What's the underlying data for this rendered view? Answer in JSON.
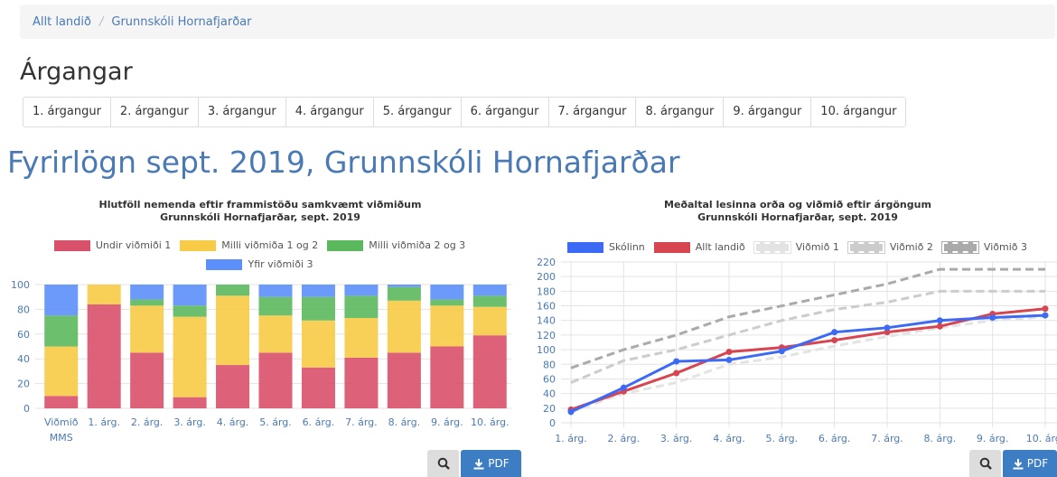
{
  "breadcrumb": [
    "Allt landið",
    "Grunnskóli Hornafjarðar"
  ],
  "heading": "Árgangar",
  "tabs": [
    "1. árgangur",
    "2. árgangur",
    "3. árgangur",
    "4. árgangur",
    "5. árgangur",
    "6. árgangur",
    "7. árgangur",
    "8. árgangur",
    "9. árgangur",
    "10. árgangur"
  ],
  "page_title": "Fyrirlögn sept. 2019, Grunnskóli Hornafjarðar",
  "chart_data": [
    {
      "type": "bar",
      "stacked": true,
      "grid": true,
      "title": [
        "Hlutföll nemenda eftir frammistöðu samkvæmt viðmiðum",
        "Grunnskóli Hornafjarðar, sept. 2019"
      ],
      "categories": [
        "Viðmið MMS",
        "1. árg.",
        "2. árg.",
        "3. árg.",
        "4. árg.",
        "5. árg.",
        "6. árg.",
        "7. árg.",
        "8. árg.",
        "9. árg.",
        "10. árg."
      ],
      "series": [
        {
          "name": "Undir viðmiði 1",
          "color": "#d9506a",
          "values": [
            10,
            84,
            45,
            9,
            35,
            45,
            33,
            41,
            45,
            50,
            59
          ]
        },
        {
          "name": "Milli viðmiða 1 og 2",
          "color": "#f7cb45",
          "values": [
            40,
            16,
            38,
            65,
            56,
            30,
            38,
            32,
            42,
            33,
            23
          ]
        },
        {
          "name": "Milli viðmiða 2 og 3",
          "color": "#5cb85c",
          "values": [
            25,
            0,
            5,
            9,
            9,
            15,
            19,
            18,
            11,
            5,
            9
          ]
        },
        {
          "name": "Yfir viðmiði 3",
          "color": "#5b8ff9",
          "values": [
            25,
            0,
            12,
            17,
            0,
            10,
            10,
            9,
            2,
            12,
            9
          ]
        }
      ],
      "ylim": [
        0,
        100
      ],
      "yticks": [
        0,
        20,
        40,
        60,
        80,
        100
      ]
    },
    {
      "type": "line",
      "grid": true,
      "title": [
        "Meðaltal lesinna orða og viðmið eftir árgöngum",
        "Grunnskóli Hornafjarðar, sept. 2019"
      ],
      "categories": [
        "1. árg.",
        "2. árg.",
        "3. árg.",
        "4. árg.",
        "5. árg.",
        "6. árg.",
        "7. árg.",
        "8. árg.",
        "9. árg.",
        "10. árg."
      ],
      "series": [
        {
          "name": "Skólinn",
          "color": "#3d6af5",
          "dashed": false,
          "values": [
            15,
            48,
            84,
            86,
            98,
            124,
            130,
            140,
            144,
            147
          ]
        },
        {
          "name": "Allt landið",
          "color": "#d64550",
          "dashed": false,
          "values": [
            18,
            43,
            68,
            97,
            103,
            113,
            124,
            132,
            149,
            156
          ]
        },
        {
          "name": "Viðmið 1",
          "color": "#e3e3e3",
          "dashed": true,
          "values": [
            15,
            40,
            55,
            80,
            90,
            105,
            118,
            130,
            140,
            145
          ]
        },
        {
          "name": "Viðmið 2",
          "color": "#cccccc",
          "dashed": true,
          "values": [
            55,
            85,
            100,
            120,
            140,
            155,
            165,
            180,
            180,
            180
          ]
        },
        {
          "name": "Viðmið 3",
          "color": "#aaaaaa",
          "dashed": true,
          "values": [
            75,
            100,
            120,
            145,
            160,
            175,
            190,
            210,
            210,
            210
          ]
        }
      ],
      "ylim": [
        0,
        220
      ],
      "yticks": [
        0,
        20,
        40,
        60,
        80,
        100,
        120,
        140,
        160,
        180,
        200,
        220
      ]
    }
  ],
  "export_buttons": [
    "PDF",
    "PDF"
  ]
}
